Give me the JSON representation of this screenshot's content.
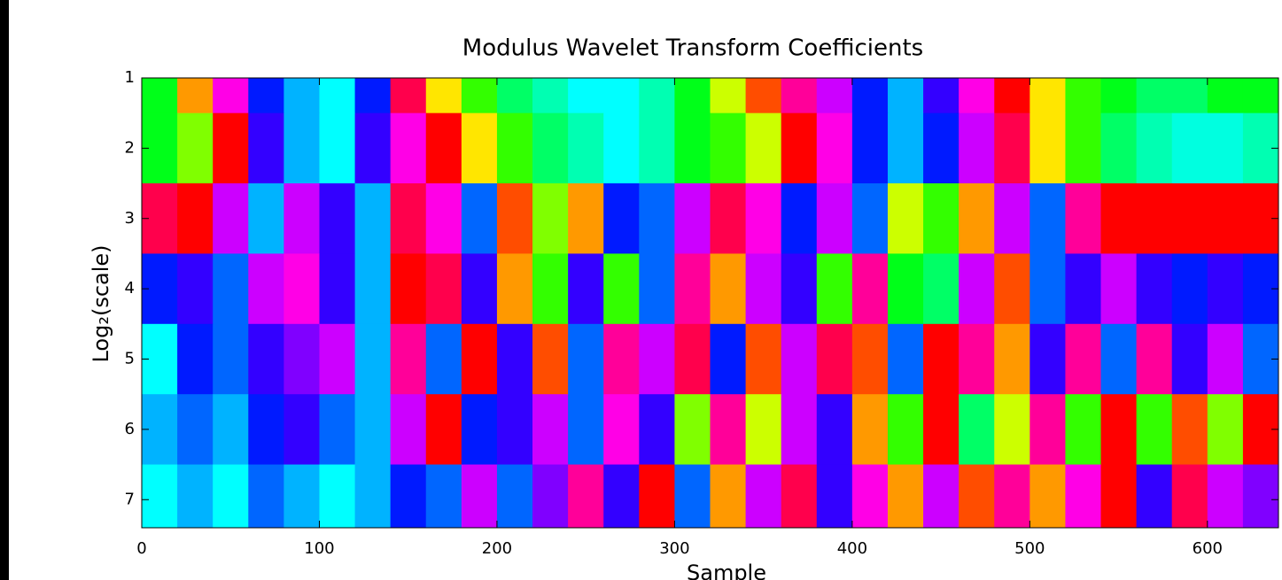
{
  "chart_data": {
    "type": "heatmap",
    "title": "Modulus Wavelet Transform Coefficients",
    "xlabel": "Sample",
    "ylabel": "Log₂(scale)",
    "x": [
      0,
      20,
      40,
      60,
      80,
      100,
      120,
      140,
      160,
      180,
      200,
      220,
      240,
      260,
      280,
      300,
      320,
      340,
      360,
      380,
      400,
      420,
      440,
      460,
      480,
      500,
      520,
      540,
      560,
      580,
      600,
      620
    ],
    "y": [
      1,
      2,
      3,
      4,
      5,
      6,
      7
    ],
    "values": [
      [
        0.85,
        0.6,
        0.35,
        0.15,
        0.05,
        0.0,
        0.15,
        0.45,
        0.65,
        0.8,
        0.9,
        0.95,
        0.0,
        0.0,
        0.95,
        0.85,
        0.7,
        0.55,
        0.4,
        0.3,
        0.15,
        0.05,
        0.2,
        0.35,
        0.5,
        0.65,
        0.8,
        0.85,
        0.9,
        0.9,
        0.85,
        0.85
      ],
      [
        0.85,
        0.75,
        0.5,
        0.2,
        0.05,
        0.0,
        0.2,
        0.35,
        0.5,
        0.65,
        0.8,
        0.9,
        0.95,
        1.0,
        0.95,
        0.85,
        0.8,
        0.7,
        0.5,
        0.35,
        0.15,
        0.05,
        0.15,
        0.3,
        0.45,
        0.65,
        0.8,
        0.9,
        0.95,
        0.98,
        0.98,
        0.95
      ],
      [
        0.45,
        0.5,
        0.3,
        0.05,
        0.3,
        0.2,
        0.05,
        0.45,
        0.35,
        0.1,
        0.55,
        0.75,
        0.6,
        0.15,
        0.1,
        0.3,
        0.45,
        0.35,
        0.15,
        0.3,
        0.1,
        0.7,
        0.8,
        0.6,
        0.3,
        0.1,
        0.4,
        0.5,
        0.5,
        0.5,
        0.5,
        0.5
      ],
      [
        0.15,
        0.2,
        0.1,
        0.3,
        0.35,
        0.2,
        0.05,
        0.5,
        0.45,
        0.2,
        0.6,
        0.8,
        0.2,
        0.8,
        0.1,
        0.4,
        0.6,
        0.3,
        0.2,
        0.8,
        0.4,
        0.85,
        0.9,
        0.3,
        0.55,
        0.1,
        0.2,
        0.3,
        0.2,
        0.15,
        0.2,
        0.15
      ],
      [
        0.0,
        0.15,
        0.1,
        0.2,
        0.25,
        0.3,
        0.05,
        0.4,
        0.1,
        0.5,
        0.2,
        0.55,
        0.1,
        0.4,
        0.3,
        0.45,
        0.15,
        0.55,
        0.3,
        0.45,
        0.55,
        0.1,
        0.5,
        0.4,
        0.6,
        0.2,
        0.4,
        0.1,
        0.4,
        0.2,
        0.3,
        0.1
      ],
      [
        0.05,
        0.1,
        0.05,
        0.15,
        0.2,
        0.1,
        0.05,
        0.3,
        0.5,
        0.15,
        0.2,
        0.3,
        0.1,
        0.35,
        0.2,
        0.75,
        0.4,
        0.7,
        0.3,
        0.2,
        0.6,
        0.8,
        0.5,
        0.9,
        0.7,
        0.4,
        0.8,
        0.5,
        0.8,
        0.55,
        0.75,
        0.5
      ],
      [
        0.0,
        0.05,
        0.0,
        0.1,
        0.05,
        0.0,
        0.05,
        0.15,
        0.1,
        0.3,
        0.1,
        0.25,
        0.4,
        0.2,
        0.5,
        0.1,
        0.6,
        0.3,
        0.45,
        0.2,
        0.35,
        0.6,
        0.3,
        0.55,
        0.4,
        0.6,
        0.35,
        0.5,
        0.2,
        0.45,
        0.3,
        0.25
      ]
    ],
    "colormap": [
      "#00ffff",
      "#0000ff",
      "#ff00ff",
      "#ff0000",
      "#ffff00",
      "#00ff00",
      "#00ffff"
    ],
    "xlim": [
      0,
      640
    ],
    "xticks": [
      0,
      100,
      200,
      300,
      400,
      500,
      600
    ],
    "ylim": [
      1,
      7.4
    ],
    "yticks": [
      1,
      2,
      3,
      4,
      5,
      6,
      7
    ]
  }
}
